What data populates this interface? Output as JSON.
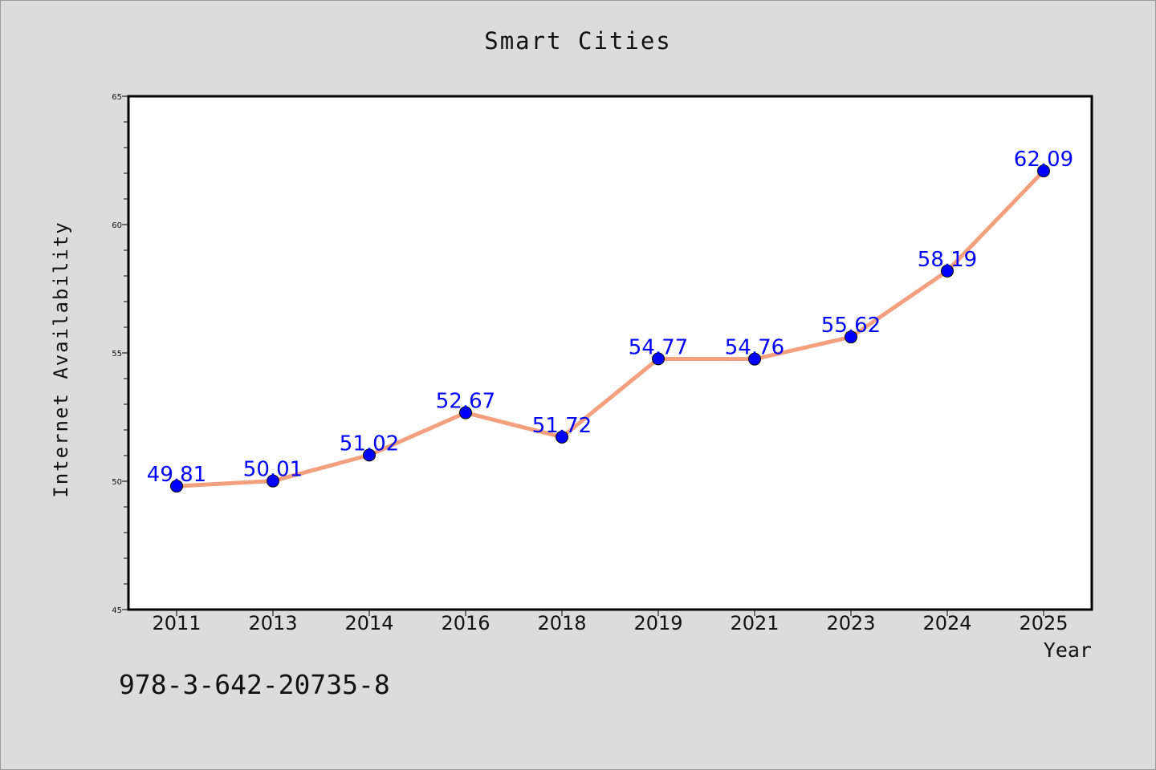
{
  "chart_data": {
    "type": "line",
    "title": "Smart Cities",
    "xlabel": "Year",
    "ylabel": "Internet Availability",
    "categories": [
      "2011",
      "2013",
      "2014",
      "2016",
      "2018",
      "2019",
      "2021",
      "2023",
      "2024",
      "2025"
    ],
    "series": [
      {
        "values": [
          49.81,
          50.01,
          51.02,
          52.67,
          51.72,
          54.77,
          54.76,
          55.62,
          58.19,
          62.09
        ],
        "data_labels": [
          "49.81",
          "50.01",
          "51.02",
          "52.67",
          "51.72",
          "54.77",
          "54.76",
          "55.62",
          "58.19",
          "62.09"
        ],
        "line_color": "#f4a07e",
        "marker_color": "#0000ff"
      }
    ],
    "ylim": [
      45,
      65
    ],
    "yticks": [
      "45",
      "50",
      "55",
      "60",
      "65"
    ],
    "grid": false,
    "legend": "none"
  },
  "footer_text": "978-3-642-20735-8",
  "colors": {
    "background": "#dcdcdc",
    "plot_area": "#ffffff",
    "line": "#f4a07e",
    "marker": "#0000ff",
    "data_label": "#0000ff"
  }
}
